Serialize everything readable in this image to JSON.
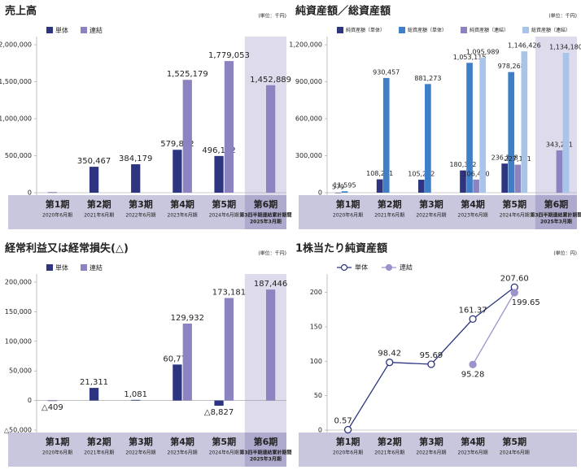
{
  "chart_data": [
    {
      "type": "bar",
      "title": "売上高",
      "unit": "(単位：千円)",
      "categories": [
        "第1期",
        "第2期",
        "第3期",
        "第4期",
        "第5期",
        "第6期"
      ],
      "subcategories": [
        "2020年6月期",
        "2021年6月期",
        "2022年6月期",
        "2023年6月期",
        "2024年6月期",
        [
          "第3四半期連結累計期間",
          "2025年3月期"
        ]
      ],
      "highlight_last": true,
      "series": [
        {
          "name": "単体",
          "color": "#2e3580",
          "values": [
            5000,
            350467,
            384179,
            579812,
            496192,
            null
          ],
          "value_labels": [
            null,
            "350,467",
            "384,179",
            "579,812",
            "496,192",
            null
          ]
        },
        {
          "name": "連結",
          "color": "#8c84c0",
          "values": [
            null,
            null,
            null,
            1525179,
            1779053,
            1452889
          ],
          "value_labels": [
            null,
            null,
            null,
            "1,525,179",
            "1,779,053",
            "1,452,889"
          ]
        }
      ],
      "ylim": [
        0,
        2000000
      ],
      "yticks": [
        0,
        {
          "value": 500000,
          "label": "500,000"
        },
        {
          "value": 1000000,
          "label": "1,000,000"
        },
        {
          "value": 1500000,
          "label": "1,500,000"
        },
        {
          "value": 2000000,
          "label": "2,000,000"
        }
      ]
    },
    {
      "type": "bar",
      "title": "純資産額／総資産額",
      "unit": "(単位：千円)",
      "categories": [
        "第1期",
        "第2期",
        "第3期",
        "第4期",
        "第5期",
        "第6期"
      ],
      "subcategories": [
        "2020年6月期",
        "2021年6月期",
        "2022年6月期",
        "2023年6月期",
        "2024年6月期",
        [
          "第3四半期連結累計期間",
          "2025年3月期"
        ]
      ],
      "highlight_last": true,
      "series": [
        {
          "name": "純資産額（単体）",
          "color": "#2e3580",
          "values": [
            579,
            108271,
            105262,
            180362,
            236188,
            null
          ],
          "value_labels": [
            "579",
            "108,271",
            "105,262",
            "180,362",
            "236,188",
            null
          ]
        },
        {
          "name": "総資産額（単体）",
          "color": "#3f7fc8",
          "values": [
            11595,
            930457,
            881273,
            1053115,
            978268,
            null
          ],
          "value_labels": [
            "11,595",
            "930,457",
            "881,273",
            "1,053,115",
            "978,268",
            null
          ]
        },
        {
          "name": "純資産額（連結）",
          "color": "#8c84c0",
          "values": [
            null,
            null,
            null,
            106490,
            227141,
            343251
          ],
          "value_labels": [
            null,
            null,
            null,
            "106,490",
            "227,141",
            "343,251"
          ]
        },
        {
          "name": "総資産額（連結）",
          "color": "#a9c4e8",
          "values": [
            null,
            null,
            null,
            1095989,
            1146426,
            1134180
          ],
          "value_labels": [
            null,
            null,
            null,
            "1,095,989",
            "1,146,426",
            "1,134,180"
          ]
        }
      ],
      "ylim": [
        0,
        1200000
      ],
      "yticks": [
        0,
        {
          "value": 300000,
          "label": "300,000"
        },
        {
          "value": 600000,
          "label": "600,000"
        },
        {
          "value": 900000,
          "label": "900,000"
        },
        {
          "value": 1200000,
          "label": "1,200,000"
        }
      ]
    },
    {
      "type": "bar",
      "title": "経常利益又は経常損失(△)",
      "unit": "(単位：千円)",
      "categories": [
        "第1期",
        "第2期",
        "第3期",
        "第4期",
        "第5期",
        "第6期"
      ],
      "subcategories": [
        "2020年6月期",
        "2021年6月期",
        "2022年6月期",
        "2023年6月期",
        "2024年6月期",
        [
          "第3四半期連結累計期間",
          "2025年3月期"
        ]
      ],
      "highlight_last": true,
      "series": [
        {
          "name": "単体",
          "color": "#2e3580",
          "values": [
            -409,
            21311,
            1081,
            60770,
            -8827,
            null
          ],
          "value_labels": [
            "△409",
            "21,311",
            "1,081",
            "60,770",
            "△8,827",
            null
          ]
        },
        {
          "name": "連結",
          "color": "#8c84c0",
          "values": [
            null,
            null,
            null,
            129932,
            173181,
            187446
          ],
          "value_labels": [
            null,
            null,
            null,
            "129,932",
            "173,181",
            "187,446"
          ]
        }
      ],
      "ylim": [
        -50000,
        200000
      ],
      "yticks": [
        {
          "value": -50000,
          "label": "△50,000"
        },
        0,
        {
          "value": 50000,
          "label": "50,000"
        },
        {
          "value": 100000,
          "label": "100,000"
        },
        {
          "value": 150000,
          "label": "150,000"
        },
        {
          "value": 200000,
          "label": "200,000"
        }
      ]
    },
    {
      "type": "line",
      "title": "1株当たり純資産額",
      "unit": "(単位：円)",
      "categories": [
        "第1期",
        "第2期",
        "第3期",
        "第4期",
        "第5期"
      ],
      "subcategories": [
        "2020年6月期",
        "2021年6月期",
        "2022年6月期",
        "2023年6月期",
        "2024年6月期"
      ],
      "series": [
        {
          "name": "単体",
          "color": "#2e3580",
          "values": [
            0.57,
            98.42,
            95.69,
            161.37,
            207.6
          ],
          "value_labels": [
            "0.57",
            "98.42",
            "95.69",
            "161.37",
            "207.60"
          ]
        },
        {
          "name": "連結",
          "color": "#9b93cc",
          "values": [
            null,
            null,
            null,
            95.28,
            199.65
          ]
        }
      ],
      "ylim": [
        0,
        215
      ],
      "yticks": [
        0,
        50,
        100,
        150,
        200
      ]
    }
  ]
}
